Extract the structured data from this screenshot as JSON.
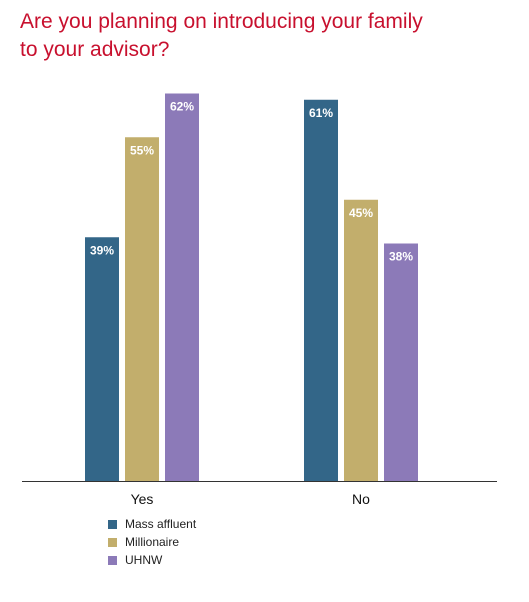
{
  "title_lines": [
    "Are you planning on introducing your family",
    "to your advisor?"
  ],
  "colors": {
    "title": "#c8102e",
    "axis": "#333333",
    "label_text": "#ffffff",
    "category_text": "#111111"
  },
  "chart_data": {
    "type": "bar",
    "title": "Are you planning on introducing your family to your advisor?",
    "categories": [
      "Yes",
      "No"
    ],
    "series": [
      {
        "name": "Mass affluent",
        "color": "#336688",
        "values": [
          39,
          61
        ],
        "labels": [
          "39%",
          "61%"
        ]
      },
      {
        "name": "Millionaire",
        "color": "#c2ae6c",
        "values": [
          55,
          45
        ],
        "labels": [
          "55%",
          "45%"
        ]
      },
      {
        "name": "UHNW",
        "color": "#8c7ab8",
        "values": [
          62,
          38
        ],
        "labels": [
          "62%",
          "38%"
        ]
      }
    ],
    "unit": "%",
    "ylim": [
      0,
      100
    ],
    "grid": false,
    "legend_placement": "bottom-left"
  }
}
